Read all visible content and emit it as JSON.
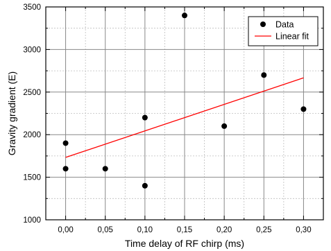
{
  "chart_data": {
    "type": "scatter",
    "xlabel": "Time delay of RF chirp (ms)",
    "ylabel": "Gravity gradient (E)",
    "xlim": [
      -0.025,
      0.325
    ],
    "ylim": [
      1000,
      3500
    ],
    "x_ticks": [
      "0,00",
      "0,05",
      "0,10",
      "0,15",
      "0,20",
      "0,25",
      "0,30"
    ],
    "x_tick_values": [
      0.0,
      0.05,
      0.1,
      0.15,
      0.2,
      0.25,
      0.3
    ],
    "y_ticks": [
      "1000",
      "1500",
      "2000",
      "2500",
      "3000",
      "3500"
    ],
    "y_tick_values": [
      1000,
      1500,
      2000,
      2500,
      3000,
      3500
    ],
    "grid": true,
    "legend_position": "top-right",
    "series": [
      {
        "name": "Data",
        "kind": "scatter",
        "color": "#000000",
        "points": [
          {
            "x": 0.0,
            "y": 1900
          },
          {
            "x": 0.0,
            "y": 1600
          },
          {
            "x": 0.05,
            "y": 1600
          },
          {
            "x": 0.1,
            "y": 2200
          },
          {
            "x": 0.1,
            "y": 1400
          },
          {
            "x": 0.15,
            "y": 3400
          },
          {
            "x": 0.2,
            "y": 2100
          },
          {
            "x": 0.25,
            "y": 2700
          },
          {
            "x": 0.3,
            "y": 2300
          }
        ]
      },
      {
        "name": "Linear fit",
        "kind": "line",
        "color": "#ff0000",
        "points": [
          {
            "x": 0.0,
            "y": 1733
          },
          {
            "x": 0.3,
            "y": 2667
          }
        ]
      }
    ]
  }
}
